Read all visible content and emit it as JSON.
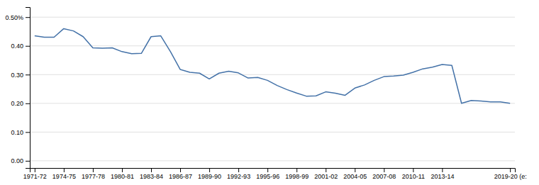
{
  "chart_data": {
    "type": "line",
    "categories": [
      "1971-72",
      null,
      null,
      "1974-75",
      null,
      null,
      "1977-78",
      null,
      null,
      "1980-81",
      null,
      null,
      "1983-84",
      null,
      null,
      "1986-87",
      null,
      null,
      "1989-90",
      null,
      null,
      "1992-93",
      null,
      null,
      "1995-96",
      null,
      null,
      "1998-99",
      null,
      null,
      "2001-02",
      null,
      null,
      "2004-05",
      null,
      null,
      "2007-08",
      null,
      null,
      "2010-11",
      null,
      null,
      "2013-14",
      null,
      null,
      null,
      null,
      null,
      null,
      "2019-20 (e:"
    ],
    "values": [
      0.435,
      0.43,
      0.43,
      0.46,
      0.452,
      0.432,
      0.393,
      0.392,
      0.393,
      0.38,
      0.373,
      0.374,
      0.432,
      0.435,
      0.38,
      0.318,
      0.308,
      0.305,
      0.285,
      0.305,
      0.312,
      0.306,
      0.288,
      0.29,
      0.28,
      0.262,
      0.248,
      0.236,
      0.225,
      0.226,
      0.24,
      0.235,
      0.228,
      0.253,
      0.264,
      0.28,
      0.293,
      0.295,
      0.298,
      0.308,
      0.32,
      0.326,
      0.335,
      0.332,
      0.2,
      0.21,
      0.208,
      0.205,
      0.205,
      0.2
    ],
    "color": "#4472a8",
    "ylim": [
      -0.025,
      0.535
    ],
    "yticks": [
      {
        "value": 0.0,
        "label": "0.00"
      },
      {
        "value": 0.1,
        "label": "0.10"
      },
      {
        "value": 0.2,
        "label": "0.20"
      },
      {
        "value": 0.3,
        "label": "0.30"
      },
      {
        "value": 0.4,
        "label": "0.40"
      },
      {
        "value": 0.5,
        "label": "0.50%"
      }
    ],
    "grid": true
  }
}
